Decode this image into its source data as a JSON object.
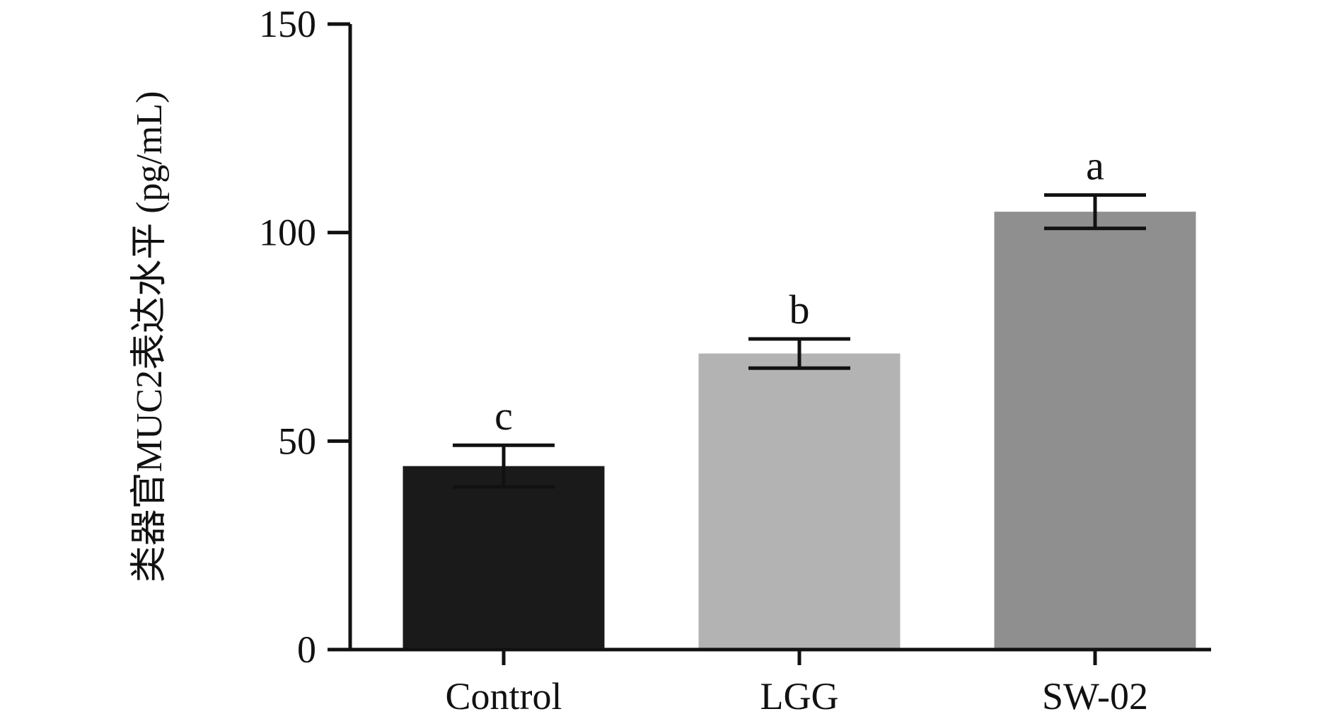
{
  "chart_data": {
    "type": "bar",
    "categories": [
      "Control",
      "LGG",
      "SW-02"
    ],
    "values": [
      44,
      71,
      105
    ],
    "errors": [
      5,
      3.5,
      4
    ],
    "annotations": [
      "c",
      "b",
      "a"
    ],
    "bar_colors": [
      "#1a1a1a",
      "#b3b3b3",
      "#8f8f8f"
    ],
    "title": "",
    "xlabel": "",
    "ylabel": "类器官MUC2表达水平 (pg/mL)",
    "ylim": [
      0,
      150
    ],
    "yticks": [
      0,
      50,
      100,
      150
    ],
    "grid": false,
    "legend": "none",
    "axis_color": "#111111"
  }
}
